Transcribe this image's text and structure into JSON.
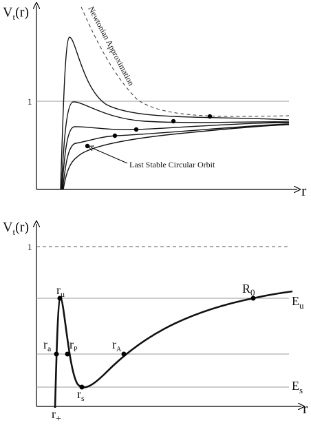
{
  "top": {
    "ylabel": {
      "main": "V",
      "sub": "t",
      "rest": "(r)"
    },
    "one": "1",
    "xlabel": "r",
    "newtonian": "Newtonian Approximation",
    "lsco": "Last Stable Circular Orbit"
  },
  "bottom": {
    "ylabel": {
      "main": "V",
      "sub": "t",
      "rest": "(r)"
    },
    "one": "1",
    "xlabel": "r",
    "labels": [
      {
        "main": "r",
        "sub": "u"
      },
      {
        "main": "r",
        "sub": "a"
      },
      {
        "main": "r",
        "sub": "P"
      },
      {
        "main": "r",
        "sub": "s"
      },
      {
        "main": "r",
        "sub": "A"
      },
      {
        "main": "R",
        "sub": "0"
      },
      {
        "main": "E",
        "sub": "u"
      },
      {
        "main": "E",
        "sub": "s"
      },
      {
        "main": "r",
        "sub": "+"
      }
    ]
  }
}
